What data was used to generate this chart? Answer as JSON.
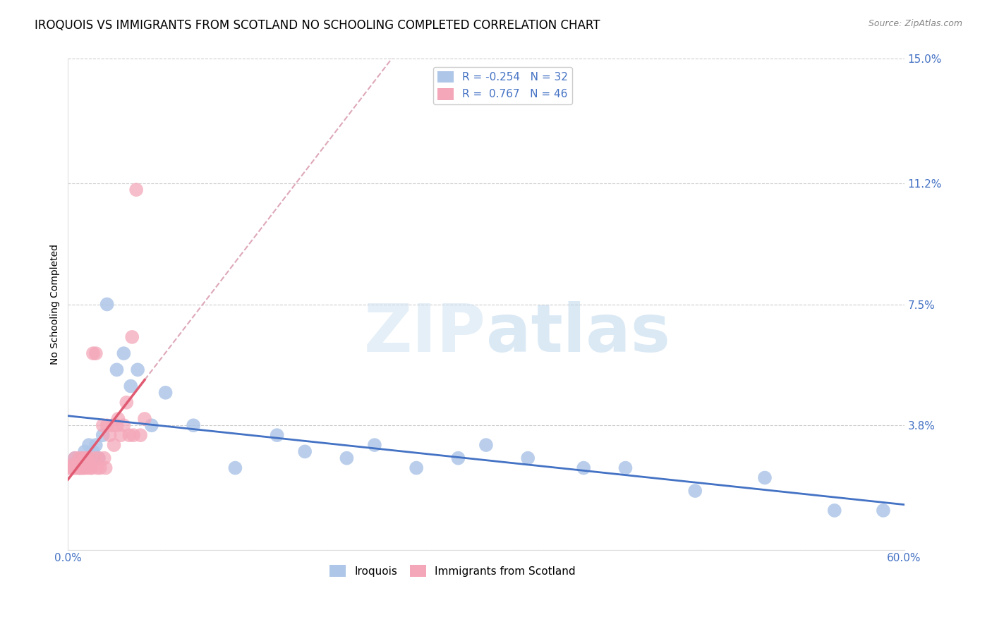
{
  "title": "IROQUOIS VS IMMIGRANTS FROM SCOTLAND NO SCHOOLING COMPLETED CORRELATION CHART",
  "source": "Source: ZipAtlas.com",
  "ylabel": "No Schooling Completed",
  "xlim": [
    0.0,
    0.6
  ],
  "ylim": [
    0.0,
    0.15
  ],
  "xticks": [
    0.0,
    0.1,
    0.2,
    0.3,
    0.4,
    0.5,
    0.6
  ],
  "xticklabels": [
    "0.0%",
    "",
    "",
    "",
    "",
    "",
    "60.0%"
  ],
  "yticks": [
    0.0,
    0.038,
    0.075,
    0.112,
    0.15
  ],
  "yticklabels": [
    "",
    "3.8%",
    "7.5%",
    "11.2%",
    "15.0%"
  ],
  "grid_color": "#cccccc",
  "iroquois_color": "#aec6e8",
  "scotland_color": "#f4a7b9",
  "iroquois_line_color": "#4472c4",
  "scotland_line_color": "#e05a72",
  "scotland_dashed_color": "#dea8b8",
  "legend_R_iroquois": "-0.254",
  "legend_N_iroquois": "32",
  "legend_R_scotland": "0.767",
  "legend_N_scotland": "46",
  "iroquois_scatter_x": [
    0.005,
    0.008,
    0.01,
    0.012,
    0.015,
    0.018,
    0.02,
    0.022,
    0.025,
    0.028,
    0.035,
    0.04,
    0.045,
    0.05,
    0.06,
    0.07,
    0.09,
    0.12,
    0.15,
    0.17,
    0.2,
    0.22,
    0.25,
    0.28,
    0.3,
    0.33,
    0.37,
    0.4,
    0.45,
    0.5,
    0.55,
    0.585
  ],
  "iroquois_scatter_y": [
    0.028,
    0.025,
    0.028,
    0.03,
    0.032,
    0.03,
    0.032,
    0.028,
    0.035,
    0.075,
    0.055,
    0.06,
    0.05,
    0.055,
    0.038,
    0.048,
    0.038,
    0.025,
    0.035,
    0.03,
    0.028,
    0.032,
    0.025,
    0.028,
    0.032,
    0.028,
    0.025,
    0.025,
    0.018,
    0.022,
    0.012,
    0.012
  ],
  "scotland_scatter_x": [
    0.001,
    0.002,
    0.003,
    0.004,
    0.005,
    0.005,
    0.006,
    0.007,
    0.008,
    0.008,
    0.009,
    0.01,
    0.01,
    0.011,
    0.012,
    0.012,
    0.013,
    0.014,
    0.015,
    0.015,
    0.016,
    0.017,
    0.018,
    0.019,
    0.02,
    0.021,
    0.022,
    0.023,
    0.025,
    0.026,
    0.027,
    0.028,
    0.03,
    0.032,
    0.033,
    0.035,
    0.036,
    0.038,
    0.04,
    0.042,
    0.044,
    0.046,
    0.047,
    0.049,
    0.052,
    0.055
  ],
  "scotland_scatter_y": [
    0.025,
    0.025,
    0.026,
    0.025,
    0.028,
    0.025,
    0.025,
    0.026,
    0.025,
    0.028,
    0.025,
    0.025,
    0.028,
    0.025,
    0.028,
    0.025,
    0.028,
    0.025,
    0.026,
    0.028,
    0.025,
    0.025,
    0.06,
    0.028,
    0.06,
    0.025,
    0.028,
    0.025,
    0.038,
    0.028,
    0.025,
    0.038,
    0.035,
    0.038,
    0.032,
    0.038,
    0.04,
    0.035,
    0.038,
    0.045,
    0.035,
    0.065,
    0.035,
    0.11,
    0.035,
    0.04
  ],
  "background_color": "#ffffff",
  "title_fontsize": 12,
  "label_fontsize": 10,
  "tick_fontsize": 11,
  "tick_color": "#4472c4",
  "axis_color": "#dddddd",
  "watermark_zip_color": "#c8dff0",
  "watermark_atlas_color": "#c8dff0"
}
